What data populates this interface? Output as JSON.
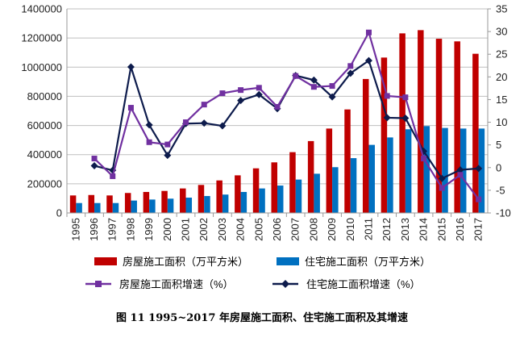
{
  "chart_data": {
    "type": "bar+line",
    "categories": [
      "1995",
      "1996",
      "1997",
      "1998",
      "1999",
      "2000",
      "2001",
      "2002",
      "2003",
      "2004",
      "2005",
      "2006",
      "2007",
      "2008",
      "2009",
      "2010",
      "2011",
      "2012",
      "2013",
      "2014",
      "2015",
      "2016",
      "2017"
    ],
    "left_axis": {
      "ylim": [
        0,
        1400000
      ],
      "ticks": [
        "0",
        "200000",
        "400000",
        "600000",
        "800000",
        "1000000",
        "1200000",
        "1400000"
      ]
    },
    "right_axis": {
      "ylim": [
        -10,
        35
      ],
      "ticks": [
        "-10",
        "-5",
        "0",
        "5",
        "10",
        "15",
        "20",
        "25",
        "30",
        "35"
      ]
    },
    "grid": true,
    "legend_placement": "bottom",
    "series": [
      {
        "name": "房屋施工面积（万平方米）",
        "kind": "bar",
        "axis": "left",
        "color": "#c00000",
        "values": [
          120000,
          123000,
          120000,
          137000,
          144000,
          151000,
          168000,
          192000,
          223000,
          258000,
          306000,
          347000,
          417000,
          493000,
          579000,
          710000,
          919000,
          1066000,
          1232000,
          1254000,
          1195000,
          1177000,
          1092000
        ]
      },
      {
        "name": "住宅施工面积（万平方米）",
        "kind": "bar",
        "axis": "left",
        "color": "#0070c0",
        "values": [
          68000,
          68000,
          68000,
          85000,
          92000,
          98000,
          105000,
          116000,
          126000,
          144000,
          168000,
          188000,
          229000,
          269000,
          314000,
          376000,
          467000,
          518000,
          574000,
          596000,
          583000,
          579000,
          579000
        ]
      },
      {
        "name": "房屋施工面积增速（%）",
        "kind": "line",
        "axis": "right",
        "marker": "square",
        "color": "#7030a0",
        "values": [
          null,
          2.0,
          -1.9,
          13.2,
          5.6,
          5.1,
          10.0,
          13.9,
          16.4,
          17.1,
          17.6,
          13.4,
          20.2,
          17.8,
          18.0,
          22.4,
          29.8,
          15.8,
          15.5,
          2.0,
          -4.5,
          -1.6,
          -7.0
        ]
      },
      {
        "name": "住宅施工面积增速（%）",
        "kind": "line",
        "axis": "right",
        "marker": "diamond",
        "color": "#0d1b4c",
        "values": [
          null,
          0.4,
          -0.6,
          22.2,
          9.4,
          2.7,
          9.7,
          9.8,
          9.2,
          14.8,
          16.1,
          13.0,
          20.3,
          19.3,
          15.6,
          20.8,
          23.6,
          11.0,
          10.9,
          3.6,
          -2.4,
          -0.5,
          -0.2
        ]
      }
    ],
    "caption": "图 11    1995~2017 年房屋施工面积、住宅施工面积及其增速"
  }
}
